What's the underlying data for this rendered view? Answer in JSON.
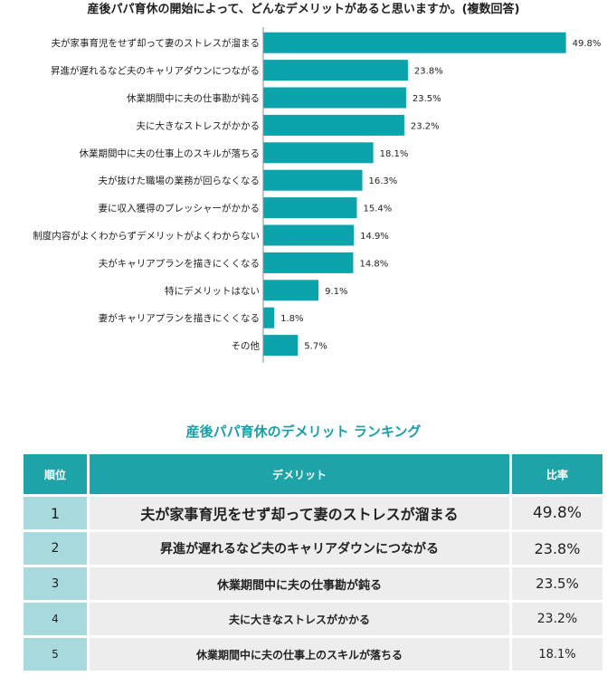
{
  "chart_data": {
    "type": "bar",
    "orientation": "horizontal",
    "title": "産後パパ育休の開始によって、どんなデメリットがあると思いますか。(複数回答)",
    "categories": [
      "夫が家事育児をせず却って妻のストレスが溜まる",
      "昇進が遅れるなど夫のキャリアダウンにつながる",
      "休業期間中に夫の仕事勘が鈍る",
      "夫に大きなストレスがかかる",
      "休業期間中に夫の仕事上のスキルが落ちる",
      "夫が抜けた職場の業務が回らなくなる",
      "妻に収入獲得のプレッシャーがかかる",
      "制度内容がよくわからずデメリットがよくわからない",
      "夫がキャリアプランを描きにくくなる",
      "特にデメリットはない",
      "妻がキャリアプランを描きにくくなる",
      "その他"
    ],
    "values": [
      49.8,
      23.8,
      23.5,
      23.2,
      18.1,
      16.3,
      15.4,
      14.9,
      14.8,
      9.1,
      1.8,
      5.7
    ],
    "value_labels": [
      "49.8%",
      "23.8%",
      "23.5%",
      "23.2%",
      "18.1%",
      "16.3%",
      "15.4%",
      "14.9%",
      "14.8%",
      "9.1%",
      "1.8%",
      "5.7%"
    ],
    "xlim": [
      0,
      50
    ],
    "grid": false,
    "bar_color": "#0ba3ac"
  },
  "ranking": {
    "title": "産後パパ育休のデメリット ランキング",
    "headers": {
      "rank": "順位",
      "demerit": "デメリット",
      "rate": "比率"
    },
    "rows": [
      {
        "rank": "1",
        "demerit": "夫が家事育児をせず却って妻のストレスが溜まる",
        "rate": "49.8%"
      },
      {
        "rank": "2",
        "demerit": "昇進が遅れるなど夫のキャリアダウンにつながる",
        "rate": "23.8%"
      },
      {
        "rank": "3",
        "demerit": "休業期間中に夫の仕事勘が鈍る",
        "rate": "23.5%"
      },
      {
        "rank": "4",
        "demerit": "夫に大きなストレスがかかる",
        "rate": "23.2%"
      },
      {
        "rank": "5",
        "demerit": "休業期間中に夫の仕事上のスキルが落ちる",
        "rate": "18.1%"
      }
    ],
    "colors": {
      "header_bg": "#1ea3a9",
      "rank_bg": "#a8dadd",
      "cell_bg": "#ededed",
      "title_color": "#1a9ea8"
    }
  }
}
